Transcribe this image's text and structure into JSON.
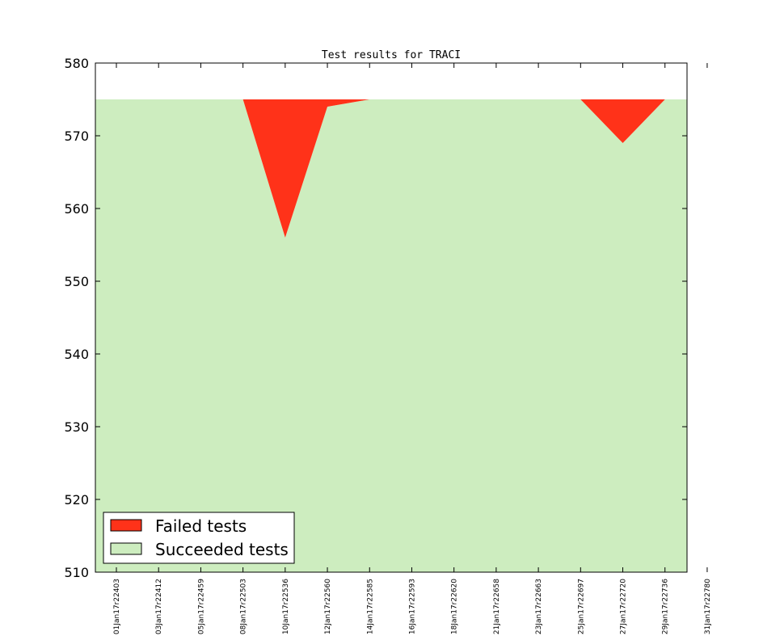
{
  "chart_data": {
    "type": "area",
    "title": "Test results for TRACI",
    "xlabel": "",
    "ylabel": "",
    "ylim": [
      510,
      580
    ],
    "yticks": [
      510,
      520,
      530,
      540,
      550,
      560,
      570,
      580
    ],
    "categories": [
      "01Jan17r22403",
      "03Jan17r22412",
      "05Jan17r22459",
      "08Jan17r22503",
      "10Jan17r22536",
      "12Jan17r22560",
      "14Jan17r22585",
      "16Jan17r22593",
      "18Jan17r22620",
      "21Jan17r22658",
      "23Jan17r22663",
      "25Jan17r22697",
      "27Jan17r22720",
      "29Jan17r22736",
      "31Jan17r22780"
    ],
    "series": [
      {
        "name": "Failed tests",
        "color": "#ff3219",
        "values": [
          575,
          575,
          575,
          575,
          556,
          574,
          575,
          575,
          575,
          575,
          575,
          575,
          569,
          575,
          575
        ]
      },
      {
        "name": "Succeeded tests",
        "color": "#cdedbf",
        "values": [
          575,
          575,
          575,
          575,
          556,
          574,
          575,
          575,
          575,
          575,
          575,
          575,
          569,
          575,
          575
        ]
      }
    ],
    "total_tests": 575,
    "legend_position": "lower-left",
    "grid": false
  }
}
